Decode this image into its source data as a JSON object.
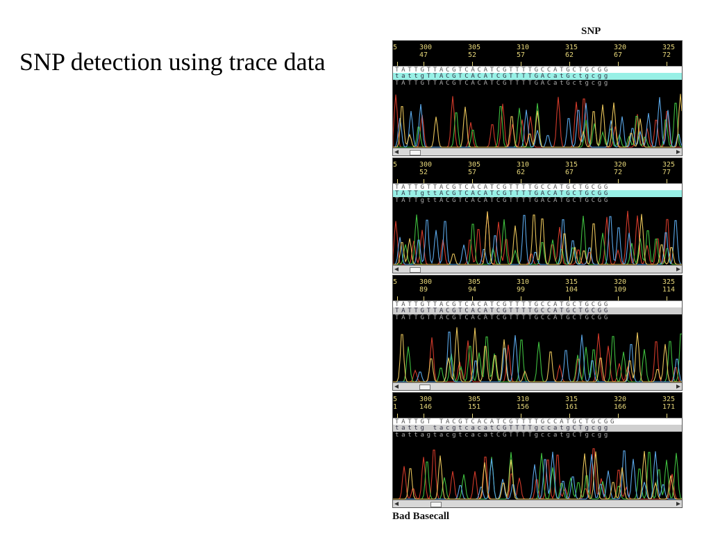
{
  "slide": {
    "title": "SNP detection using trace data"
  },
  "figure": {
    "caption_top": "SNP",
    "caption_bottom": "Bad Basecall",
    "panels": [
      {
        "ruler_top": [
          "5",
          "300",
          "305",
          "310",
          "315",
          "320",
          "325"
        ],
        "ruler_bottom": [
          "",
          "47",
          "52",
          "57",
          "62",
          "67",
          "72"
        ],
        "ref_seq": "TATTGTTACGTCACATCGTTTTGCCATGCTGCGG",
        "call_seq": "tattgTTACGTCACATCGTTTTGACatGctgcgg",
        "qual_seq": "TATTGTTACGTCACATCGTTTTGACatGctgcgg",
        "call_style": "cyan"
      },
      {
        "ruler_top": [
          "5",
          "300",
          "305",
          "310",
          "315",
          "320",
          "325"
        ],
        "ruler_bottom": [
          "",
          "52",
          "57",
          "62",
          "67",
          "72",
          "77"
        ],
        "ref_seq": "TATTGTTACGTCACATCGTTTTGCCATGCTGCGG",
        "call_seq": "TATTgttACGTCACATCGTTTTGACATGCTGCGG",
        "qual_seq": "TATTgttACGTCACATCGTTTTGACATGCTGCGG",
        "call_style": "cyan"
      },
      {
        "ruler_top": [
          "5",
          "300",
          "305",
          "310",
          "315",
          "320",
          "325"
        ],
        "ruler_bottom": [
          "",
          "89",
          "94",
          "99",
          "104",
          "109",
          "114"
        ],
        "ref_seq": "TATTGTTACGTCACATCGTTTTGCCATGCTGCGG",
        "call_seq": "TATTGTTACGTCACATCGTTTTGCCATGCTGCGG",
        "qual_seq": "TATTGTTACGTCACATCGTTTTGCCATGCTGCGG",
        "call_style": "grey"
      },
      {
        "ruler_top": [
          "5",
          "300",
          "305",
          "310",
          "315",
          "320",
          "325"
        ],
        "ruler_bottom": [
          "1",
          "146",
          "151",
          "156",
          "161",
          "166",
          "171"
        ],
        "ref_seq": "TATTGT TACGTCACATCGTTTTGCCATGCTGCGG",
        "call_seq": "tattg tacgtcacatCGTTTTgccatgCTgcgg",
        "qual_seq": "tattagtacgtcacatCGTTTTgccatgCTgcgg",
        "call_style": "grey"
      }
    ]
  },
  "colors": {
    "trace_A": "#3fbf3f",
    "trace_C": "#5aa7e8",
    "trace_G": "#e8c45a",
    "trace_T": "#d23a2a",
    "ruler_text": "#e7d77a"
  }
}
